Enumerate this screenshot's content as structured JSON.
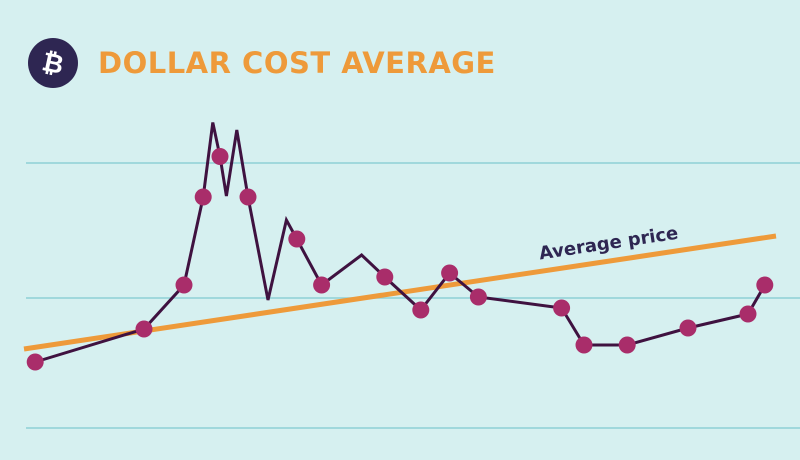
{
  "header": {
    "title": "DOLLAR COST AVERAGE",
    "logo_icon": "bitcoin-icon"
  },
  "colors": {
    "background": "#d6f0f0",
    "grid": "#8ecfd6",
    "price_line": "#3f1240",
    "price_points": "#a92d6a",
    "average_line": "#ee9a3a",
    "title": "#ee9a3a",
    "logo_bg": "#2e2652",
    "label": "#2e2652"
  },
  "chart_data": {
    "type": "line",
    "title": "DOLLAR COST AVERAGE",
    "xlabel": "",
    "ylabel": "",
    "grid": true,
    "xlim": [
      0,
      100
    ],
    "ylim": [
      0,
      100
    ],
    "x_ticks": [],
    "y_ticks": [],
    "series": [
      {
        "kind": "price",
        "values": [
          {
            "x": 4.4,
            "y": 15.2,
            "marker": true
          },
          {
            "x": 18.0,
            "y": 28.4,
            "marker": true
          },
          {
            "x": 23.0,
            "y": 46.0,
            "marker": true
          },
          {
            "x": 25.4,
            "y": 81.2,
            "marker": true
          },
          {
            "x": 26.6,
            "y": 111.0,
            "marker": false
          },
          {
            "x": 27.5,
            "y": 97.4,
            "marker": true
          },
          {
            "x": 28.3,
            "y": 81.6,
            "marker": false
          },
          {
            "x": 29.6,
            "y": 108.0,
            "marker": false
          },
          {
            "x": 31.0,
            "y": 81.2,
            "marker": true
          },
          {
            "x": 33.5,
            "y": 40.0,
            "marker": false
          },
          {
            "x": 35.8,
            "y": 72.0,
            "marker": false
          },
          {
            "x": 37.1,
            "y": 64.4,
            "marker": true
          },
          {
            "x": 40.2,
            "y": 46.0,
            "marker": true
          },
          {
            "x": 45.2,
            "y": 58.0,
            "marker": false
          },
          {
            "x": 48.1,
            "y": 49.2,
            "marker": true
          },
          {
            "x": 52.6,
            "y": 36.0,
            "marker": true
          },
          {
            "x": 56.2,
            "y": 50.8,
            "marker": true
          },
          {
            "x": 59.8,
            "y": 41.2,
            "marker": true
          },
          {
            "x": 70.2,
            "y": 36.8,
            "marker": true
          },
          {
            "x": 73.0,
            "y": 22.0,
            "marker": true
          },
          {
            "x": 78.4,
            "y": 22.0,
            "marker": true
          },
          {
            "x": 86.0,
            "y": 28.8,
            "marker": true
          },
          {
            "x": 93.5,
            "y": 34.4,
            "marker": true
          },
          {
            "x": 95.6,
            "y": 46.0,
            "marker": true
          }
        ]
      },
      {
        "name": "Average price",
        "kind": "average",
        "values": [
          {
            "x": 3.0,
            "y": 20.4
          },
          {
            "x": 97.0,
            "y": 65.6
          }
        ]
      }
    ],
    "annotations": [
      {
        "text": "Average price",
        "series": "average"
      }
    ]
  }
}
